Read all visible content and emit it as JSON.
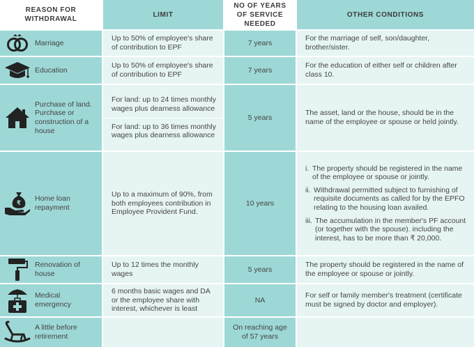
{
  "header": {
    "reason": "REASON FOR WITHDRAWAL",
    "limit": "LIMIT",
    "years": "NO OF YEARS OF SERVICE NEEDED",
    "other": "OTHER CONDITIONS"
  },
  "rows": [
    {
      "icon": "rings-icon",
      "reason": "Marriage",
      "limit": "Up to 50% of employee's share of contribution to EPF",
      "years": "7 years",
      "other": "For the marriage of self, son/daughter, brother/sister."
    },
    {
      "icon": "graduation-cap-icon",
      "reason": "Education",
      "limit": "Up to 50% of employee's share of contribution to EPF",
      "years": "7 years",
      "other": "For the education of either self or children after class 10."
    },
    {
      "icon": "house-icon",
      "reason": "Purchase of land. Purchase or construction of a house",
      "limit_a": "For land: up to 24 times monthly wages plus dearness allowance",
      "limit_b": "For land: up to 36 times monthly wages plus dearness allowance",
      "years": "5 years",
      "other": "The asset, land or the house, should be in the name of the employee or spouse or held jointly."
    },
    {
      "icon": "money-bag-hand-icon",
      "reason": "Home loan repayment",
      "limit": "Up to a maximum of 90%, from both employees contribution in Employee Provident Fund.",
      "years": "10 years",
      "other_items": [
        {
          "num": "i.",
          "text": "The property should be registered in the name of the employee or spouse or jointly."
        },
        {
          "num": "ii.",
          "text": "Withdrawal permitted subject to furnishing of requisite documents as called for by the EPFO relating to the housing loan availed."
        },
        {
          "num": "iii.",
          "text": "The accumulation in the member's PF account (or together with the spouse). including the interest, has to be more than ₹ 20,000."
        }
      ]
    },
    {
      "icon": "paint-roller-icon",
      "reason": "Renovation of house",
      "limit": "Up to 12 times the monthly wages",
      "years": "5 years",
      "other": "The property should be registered in the name of the employee or spouse or jointly."
    },
    {
      "icon": "medical-kit-umbrella-icon",
      "reason": "Medical emergency",
      "limit": "6 months basic wages and DA or the employee share with interest, whichever is least",
      "years": "NA",
      "other": "For self or family member's treatment (certificate must be signed by doctor and employer)."
    },
    {
      "icon": "rocking-chair-icon",
      "reason": "A little before retirement",
      "limit": "",
      "years": "On reaching age of 57 years",
      "other": ""
    }
  ]
}
